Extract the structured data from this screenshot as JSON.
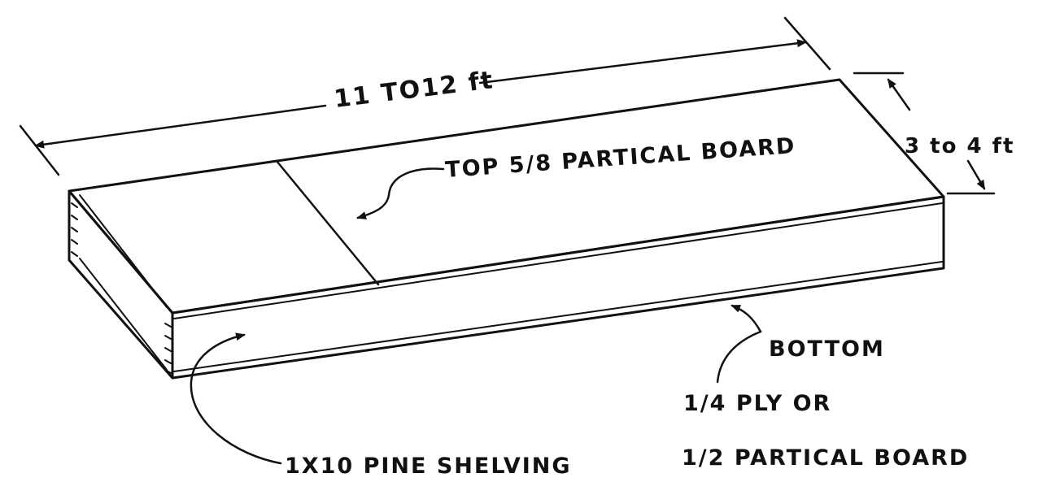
{
  "labels": {
    "length": "11 TO12 ft",
    "width": "3 to 4 ft",
    "top": "TOP 5/8 PARTICAL BOARD",
    "bottom": "BOTTOM",
    "bottom_ply": "1/4 PLY OR",
    "bottom_board": "1/2 PARTICAL BOARD",
    "sides": "1X10 PINE SHELVING"
  },
  "colors": {
    "ink": "#111111",
    "paper": "#ffffff"
  }
}
